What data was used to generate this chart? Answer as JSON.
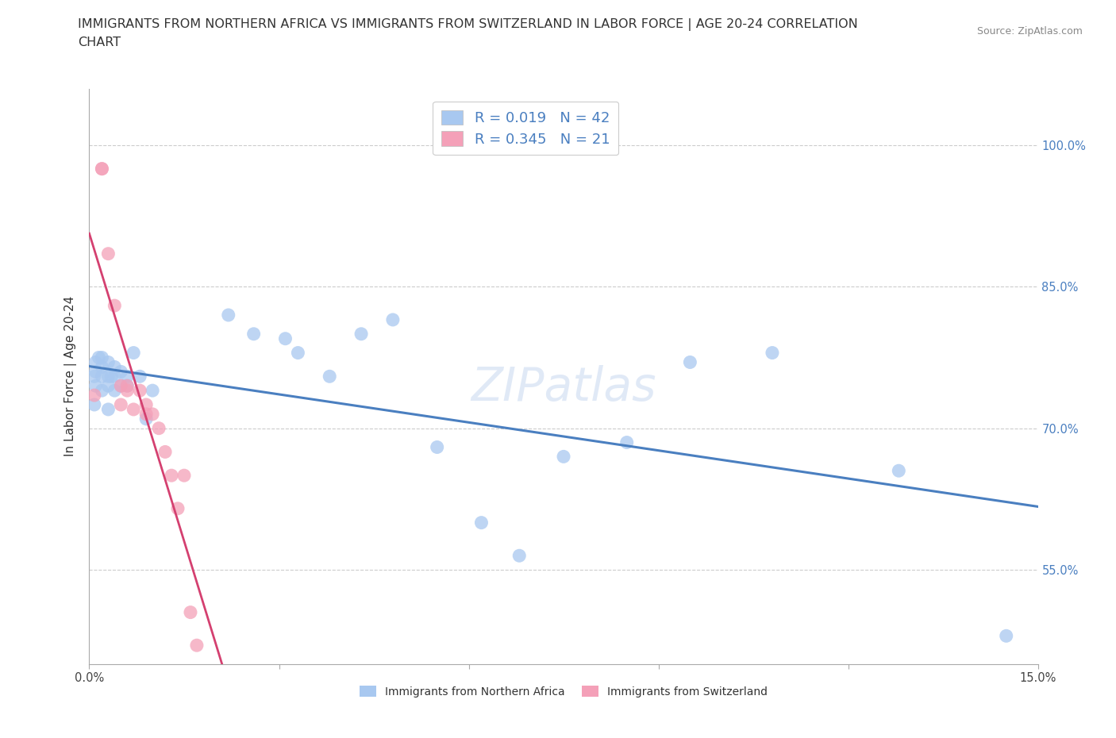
{
  "title_line1": "IMMIGRANTS FROM NORTHERN AFRICA VS IMMIGRANTS FROM SWITZERLAND IN LABOR FORCE | AGE 20-24 CORRELATION",
  "title_line2": "CHART",
  "source_text": "Source: ZipAtlas.com",
  "ylabel": "In Labor Force | Age 20-24",
  "xlim": [
    0.0,
    0.15
  ],
  "ylim": [
    0.45,
    1.06
  ],
  "yticks": [
    0.55,
    0.7,
    0.85,
    1.0
  ],
  "yticklabels": [
    "55.0%",
    "70.0%",
    "85.0%",
    "100.0%"
  ],
  "color_blue": "#a8c8f0",
  "color_pink": "#f4a0b8",
  "trend_blue": "#4a7fc0",
  "trend_pink": "#d44070",
  "background": "#ffffff",
  "grid_color": "#cccccc",
  "blue_scatter_x": [
    0.0008,
    0.0008,
    0.001,
    0.001,
    0.001,
    0.0015,
    0.002,
    0.002,
    0.002,
    0.002,
    0.003,
    0.003,
    0.003,
    0.003,
    0.0035,
    0.004,
    0.004,
    0.004,
    0.005,
    0.005,
    0.006,
    0.006,
    0.007,
    0.008,
    0.009,
    0.01,
    0.022,
    0.026,
    0.031,
    0.033,
    0.038,
    0.043,
    0.048,
    0.055,
    0.062,
    0.068,
    0.075,
    0.085,
    0.095,
    0.108,
    0.128,
    0.145
  ],
  "blue_scatter_y": [
    0.755,
    0.725,
    0.77,
    0.76,
    0.745,
    0.775,
    0.775,
    0.765,
    0.755,
    0.74,
    0.77,
    0.755,
    0.745,
    0.72,
    0.755,
    0.765,
    0.755,
    0.74,
    0.76,
    0.745,
    0.755,
    0.745,
    0.78,
    0.755,
    0.71,
    0.74,
    0.82,
    0.8,
    0.795,
    0.78,
    0.755,
    0.8,
    0.815,
    0.68,
    0.6,
    0.565,
    0.67,
    0.685,
    0.77,
    0.78,
    0.655,
    0.48
  ],
  "pink_scatter_x": [
    0.0008,
    0.002,
    0.002,
    0.003,
    0.004,
    0.005,
    0.005,
    0.006,
    0.006,
    0.007,
    0.008,
    0.009,
    0.009,
    0.01,
    0.011,
    0.012,
    0.013,
    0.014,
    0.015,
    0.016,
    0.017
  ],
  "pink_scatter_y": [
    0.735,
    0.975,
    0.975,
    0.885,
    0.83,
    0.745,
    0.725,
    0.745,
    0.74,
    0.72,
    0.74,
    0.725,
    0.715,
    0.715,
    0.7,
    0.675,
    0.65,
    0.615,
    0.65,
    0.505,
    0.47
  ],
  "title_fontsize": 11.5,
  "axis_fontsize": 11,
  "tick_fontsize": 10.5,
  "legend_fontsize": 13
}
